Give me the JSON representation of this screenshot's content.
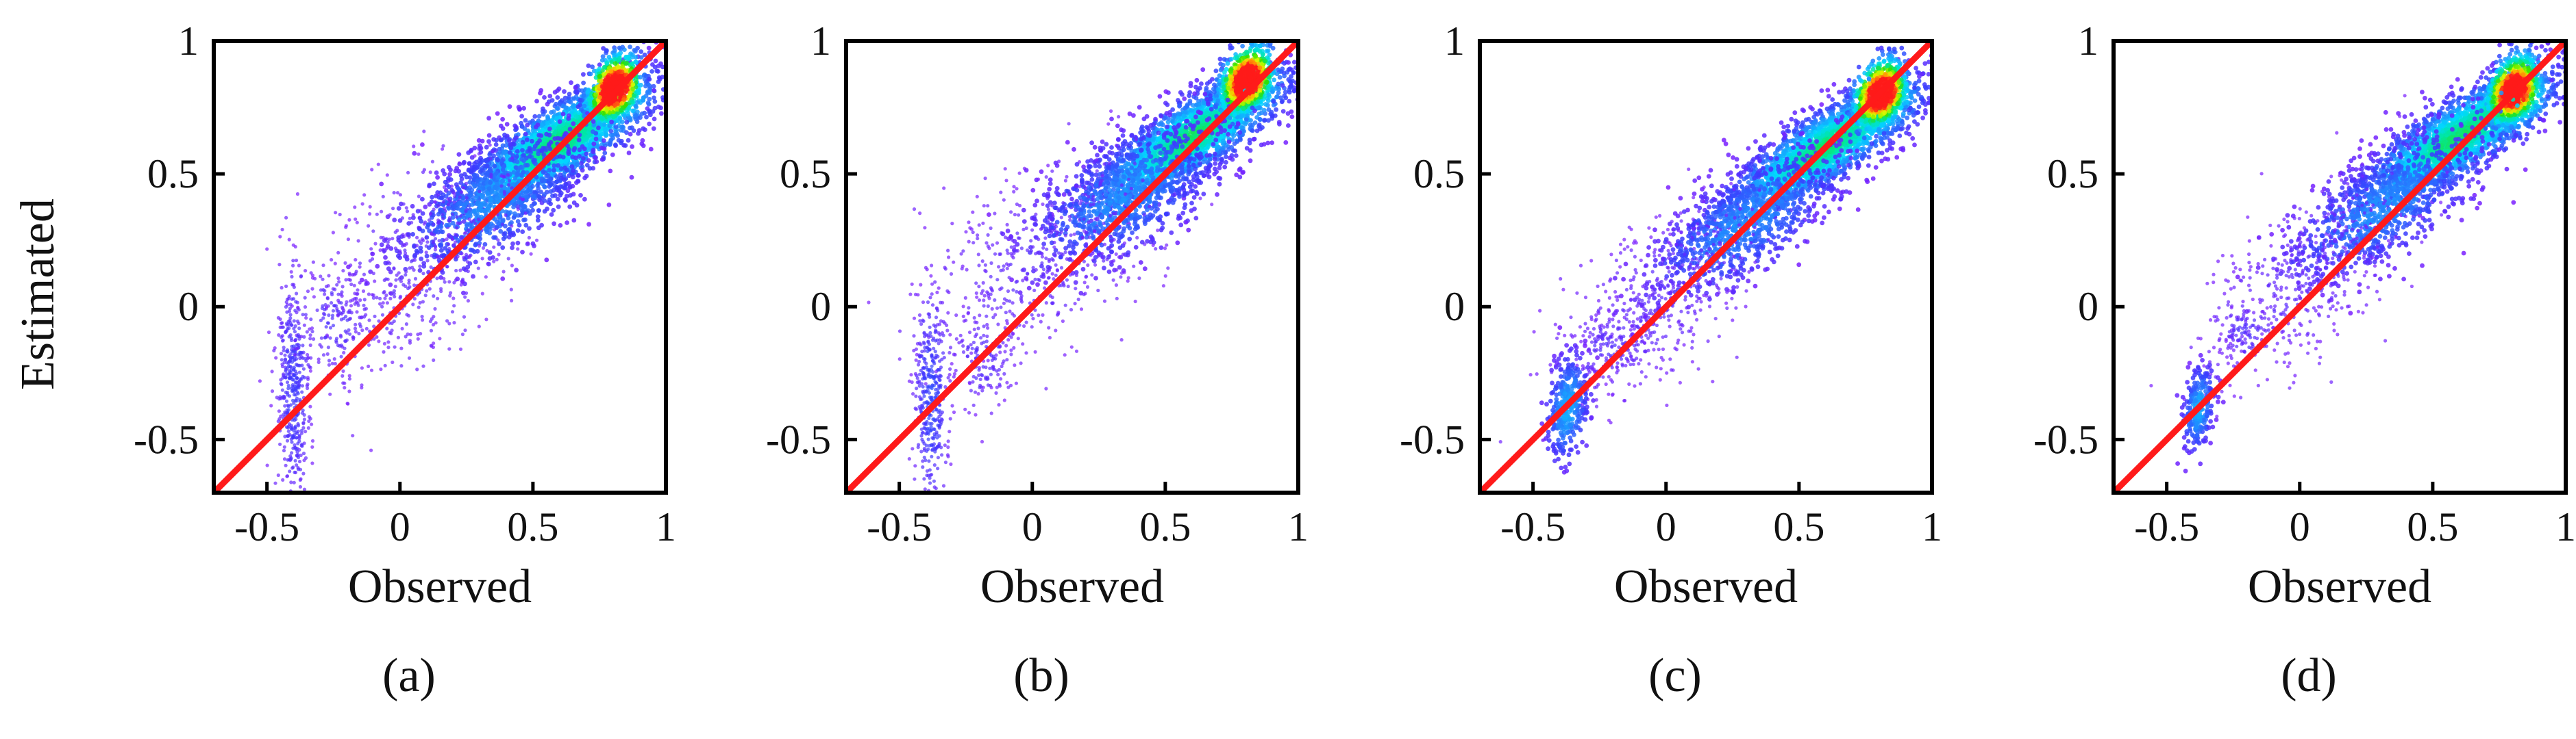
{
  "figure": {
    "y_axis_label": "Estimated",
    "colors": {
      "frame": "#000000",
      "one_to_one_line": "#ff1a1a",
      "sparse": "#7a1fff",
      "background": "#ffffff"
    },
    "colormap": [
      "#7a1fff",
      "#3b3bff",
      "#1f8fff",
      "#00d9ff",
      "#00e6a0",
      "#2fe000",
      "#d9ff00",
      "#ffb000",
      "#ff1a1a"
    ]
  },
  "chart_data": [
    {
      "id": "a",
      "caption": "(a)",
      "type": "scatter",
      "subtype": "density scatter (point-density colored)",
      "xlabel": "Observed",
      "ylabel": "Estimated",
      "xlim": [
        -0.7,
        1
      ],
      "ylim": [
        -0.7,
        1
      ],
      "xticks": [
        -0.5,
        0,
        0.5,
        1
      ],
      "xtick_labels": [
        "-0.5",
        "0",
        "0.5",
        "1"
      ],
      "yticks": [
        -0.5,
        0,
        0.5,
        1
      ],
      "ytick_labels": [
        "-0.5",
        "0",
        "0.5",
        "1"
      ],
      "reference_line": {
        "label": "1:1 line",
        "x": [
          -0.7,
          1
        ],
        "y": [
          -0.7,
          1
        ]
      },
      "density_peak": {
        "x": 0.82,
        "y": 0.82
      },
      "point_clusters": [
        {
          "x": 0.6,
          "y": 0.62,
          "sx": 0.17,
          "sy": 0.12,
          "rho": 0.78,
          "count": 2400,
          "level": 0.55
        },
        {
          "x": 0.8,
          "y": 0.82,
          "sx": 0.05,
          "sy": 0.07,
          "rho": 0.4,
          "count": 700,
          "level": 0.95
        },
        {
          "x": 0.35,
          "y": 0.4,
          "sx": 0.18,
          "sy": 0.14,
          "rho": 0.6,
          "count": 900,
          "level": 0.25
        },
        {
          "x": 0.05,
          "y": 0.15,
          "sx": 0.2,
          "sy": 0.22,
          "rho": 0.5,
          "count": 500,
          "level": 0.05
        },
        {
          "x": -0.4,
          "y": -0.3,
          "sx": 0.03,
          "sy": 0.22,
          "rho": 0.0,
          "count": 450,
          "level": 0.12
        },
        {
          "x": -0.25,
          "y": -0.05,
          "sx": 0.08,
          "sy": 0.1,
          "rho": 0.0,
          "count": 150,
          "level": 0.08
        }
      ]
    },
    {
      "id": "b",
      "caption": "(b)",
      "type": "scatter",
      "subtype": "density scatter (point-density colored)",
      "xlabel": "Observed",
      "ylabel": "",
      "xlim": [
        -0.7,
        1
      ],
      "ylim": [
        -0.7,
        1
      ],
      "xticks": [
        -0.5,
        0,
        0.5,
        1
      ],
      "xtick_labels": [
        "-0.5",
        "0",
        "0.5",
        "1"
      ],
      "yticks": [
        -0.5,
        0,
        0.5,
        1
      ],
      "ytick_labels": [
        "-0.5",
        "0",
        "0.5",
        "1"
      ],
      "reference_line": {
        "label": "1:1 line",
        "x": [
          -0.7,
          1
        ],
        "y": [
          -0.7,
          1
        ]
      },
      "density_peak": {
        "x": 0.82,
        "y": 0.85
      },
      "point_clusters": [
        {
          "x": 0.6,
          "y": 0.64,
          "sx": 0.17,
          "sy": 0.12,
          "rho": 0.8,
          "count": 2400,
          "level": 0.55
        },
        {
          "x": 0.8,
          "y": 0.85,
          "sx": 0.05,
          "sy": 0.07,
          "rho": 0.4,
          "count": 700,
          "level": 0.95
        },
        {
          "x": 0.35,
          "y": 0.42,
          "sx": 0.18,
          "sy": 0.14,
          "rho": 0.6,
          "count": 900,
          "level": 0.25
        },
        {
          "x": 0.0,
          "y": 0.15,
          "sx": 0.22,
          "sy": 0.2,
          "rho": 0.5,
          "count": 500,
          "level": 0.05
        },
        {
          "x": -0.38,
          "y": -0.35,
          "sx": 0.03,
          "sy": 0.2,
          "rho": 0.0,
          "count": 400,
          "level": 0.15
        },
        {
          "x": -0.18,
          "y": -0.2,
          "sx": 0.06,
          "sy": 0.08,
          "rho": 0.0,
          "count": 120,
          "level": 0.08
        }
      ]
    },
    {
      "id": "c",
      "caption": "(c)",
      "type": "scatter",
      "subtype": "density scatter (point-density colored)",
      "xlabel": "Observed",
      "ylabel": "",
      "xlim": [
        -0.7,
        1
      ],
      "ylim": [
        -0.7,
        1
      ],
      "xticks": [
        -0.5,
        0,
        0.5,
        1
      ],
      "xtick_labels": [
        "-0.5",
        "0",
        "0.5",
        "1"
      ],
      "yticks": [
        -0.5,
        0,
        0.5,
        1
      ],
      "ytick_labels": [
        "-0.5",
        "0",
        "0.5",
        "1"
      ],
      "reference_line": {
        "label": "1:1 line",
        "x": [
          -0.7,
          1
        ],
        "y": [
          -0.7,
          1
        ]
      },
      "density_peak": {
        "x": 0.82,
        "y": 0.8
      },
      "point_clusters": [
        {
          "x": 0.6,
          "y": 0.6,
          "sx": 0.17,
          "sy": 0.12,
          "rho": 0.82,
          "count": 2400,
          "level": 0.55
        },
        {
          "x": 0.8,
          "y": 0.8,
          "sx": 0.05,
          "sy": 0.07,
          "rho": 0.4,
          "count": 700,
          "level": 0.95
        },
        {
          "x": 0.3,
          "y": 0.32,
          "sx": 0.18,
          "sy": 0.14,
          "rho": 0.7,
          "count": 900,
          "level": 0.25
        },
        {
          "x": -0.05,
          "y": 0.0,
          "sx": 0.18,
          "sy": 0.18,
          "rho": 0.6,
          "count": 500,
          "level": 0.05
        },
        {
          "x": -0.37,
          "y": -0.38,
          "sx": 0.04,
          "sy": 0.1,
          "rho": 0.3,
          "count": 350,
          "level": 0.3
        },
        {
          "x": -0.2,
          "y": -0.15,
          "sx": 0.06,
          "sy": 0.06,
          "rho": 0.0,
          "count": 100,
          "level": 0.08
        }
      ]
    },
    {
      "id": "d",
      "caption": "(d)",
      "type": "scatter",
      "subtype": "density scatter (point-density colored)",
      "xlabel": "Observed",
      "ylabel": "",
      "xlim": [
        -0.7,
        1
      ],
      "ylim": [
        -0.7,
        1
      ],
      "xticks": [
        -0.5,
        0,
        0.5,
        1
      ],
      "xtick_labels": [
        "-0.5",
        "0",
        "0.5",
        "1"
      ],
      "yticks": [
        -0.5,
        0,
        0.5,
        1
      ],
      "ytick_labels": [
        "-0.5",
        "0",
        "0.5",
        "1"
      ],
      "reference_line": {
        "label": "1:1 line",
        "x": [
          -0.7,
          1
        ],
        "y": [
          -0.7,
          1
        ]
      },
      "density_peak": {
        "x": 0.82,
        "y": 0.8
      },
      "point_clusters": [
        {
          "x": 0.6,
          "y": 0.64,
          "sx": 0.17,
          "sy": 0.12,
          "rho": 0.8,
          "count": 2400,
          "level": 0.55
        },
        {
          "x": 0.8,
          "y": 0.82,
          "sx": 0.05,
          "sy": 0.07,
          "rho": 0.4,
          "count": 700,
          "level": 0.95
        },
        {
          "x": 0.32,
          "y": 0.38,
          "sx": 0.18,
          "sy": 0.14,
          "rho": 0.7,
          "count": 900,
          "level": 0.25
        },
        {
          "x": 0.0,
          "y": 0.1,
          "sx": 0.18,
          "sy": 0.18,
          "rho": 0.6,
          "count": 450,
          "level": 0.05
        },
        {
          "x": -0.38,
          "y": -0.38,
          "sx": 0.03,
          "sy": 0.08,
          "rho": 0.3,
          "count": 250,
          "level": 0.3
        },
        {
          "x": -0.2,
          "y": -0.1,
          "sx": 0.06,
          "sy": 0.05,
          "rho": 0.0,
          "count": 90,
          "level": 0.08
        }
      ]
    }
  ]
}
